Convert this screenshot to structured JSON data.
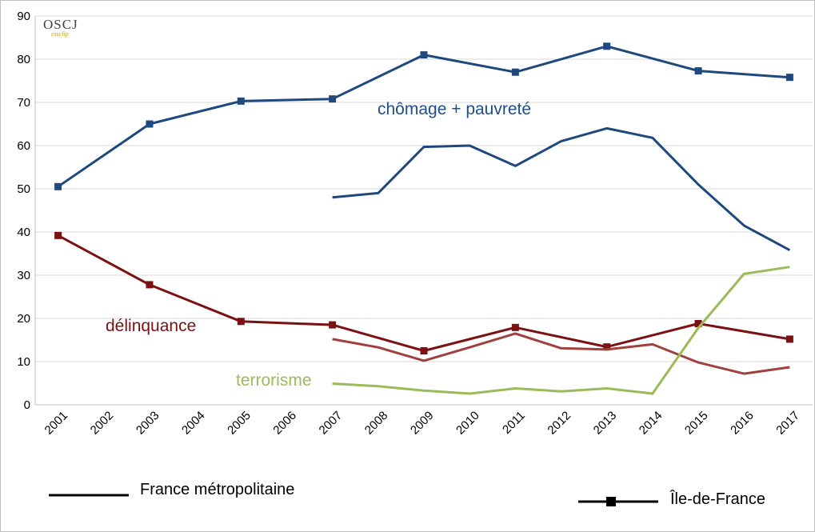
{
  "logo": {
    "main": "OSCJ",
    "sub": "essclip"
  },
  "legend": [
    {
      "label": "France métropolitaine",
      "marker": false
    },
    {
      "label": "Île-de-France",
      "marker": true
    }
  ],
  "chart_data": {
    "type": "line",
    "title": "",
    "xlabel": "",
    "ylabel": "",
    "x": [
      "2001",
      "2002",
      "2003",
      "2004",
      "2005",
      "2006",
      "2007",
      "2008",
      "2009",
      "2010",
      "2011",
      "2012",
      "2013",
      "2014",
      "2015",
      "2016",
      "2017"
    ],
    "ylim": [
      0,
      90
    ],
    "yticks": [
      0,
      10,
      20,
      30,
      40,
      50,
      60,
      70,
      80,
      90
    ],
    "grid": true,
    "annotations": [
      {
        "text": "chômage + pauvreté",
        "color": "#1f4e8c"
      },
      {
        "text": "délinquance",
        "color": "#7b1113"
      },
      {
        "text": "terrorisme",
        "color": "#9bbb59"
      }
    ],
    "series": [
      {
        "group": "Île-de-France",
        "topic": "chômage + pauvreté",
        "color": "#1f497d",
        "marker": true,
        "values": [
          50.5,
          null,
          65,
          null,
          70.3,
          null,
          70.8,
          null,
          81,
          null,
          77,
          null,
          83,
          null,
          77.3,
          null,
          75.8
        ]
      },
      {
        "group": "France métropolitaine",
        "topic": "chômage + pauvreté",
        "color": "#1f497d",
        "marker": false,
        "values": [
          null,
          null,
          null,
          null,
          null,
          null,
          48,
          49,
          59.7,
          60,
          55.3,
          61,
          64,
          61.8,
          51,
          41.5,
          35.8
        ]
      },
      {
        "group": "Île-de-France",
        "topic": "délinquance",
        "color": "#7b1113",
        "marker": true,
        "values": [
          39.2,
          null,
          27.8,
          null,
          19.3,
          null,
          18.5,
          null,
          12.5,
          null,
          17.9,
          null,
          13.4,
          null,
          18.8,
          null,
          15.2
        ]
      },
      {
        "group": "France métropolitaine",
        "topic": "délinquance",
        "color": "#a0403f",
        "marker": false,
        "values": [
          null,
          null,
          null,
          null,
          null,
          null,
          15.2,
          13.3,
          10.2,
          13.3,
          16.5,
          13.1,
          12.8,
          14,
          9.8,
          7.2,
          8.7
        ]
      },
      {
        "group": "France métropolitaine",
        "topic": "terrorisme",
        "color": "#9bbb59",
        "marker": false,
        "values": [
          null,
          null,
          null,
          null,
          null,
          null,
          4.9,
          4.3,
          3.3,
          2.6,
          3.8,
          3.1,
          3.8,
          2.6,
          17.8,
          30.3,
          31.9
        ]
      }
    ]
  }
}
